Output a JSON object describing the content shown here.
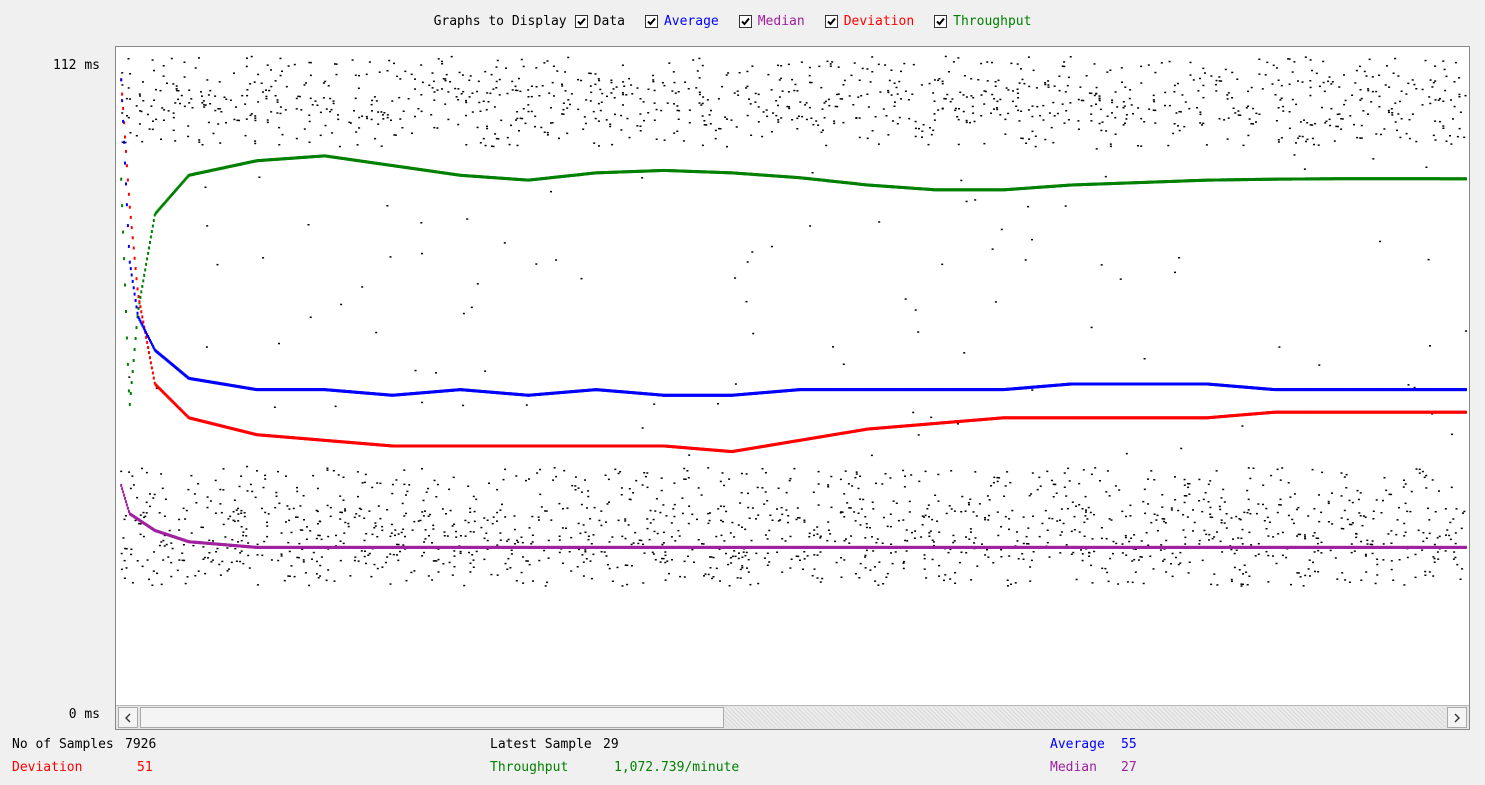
{
  "controls": {
    "title": "Graphs to Display",
    "checkboxes": [
      {
        "key": "data",
        "label": "Data",
        "checked": true,
        "color": "#000000"
      },
      {
        "key": "average",
        "label": "Average",
        "checked": true,
        "color": "#0000ff"
      },
      {
        "key": "median",
        "label": "Median",
        "checked": true,
        "color": "#a020a0"
      },
      {
        "key": "deviation",
        "label": "Deviation",
        "checked": true,
        "color": "#ff0000"
      },
      {
        "key": "throughput",
        "label": "Throughput",
        "checked": true,
        "color": "#008000"
      }
    ]
  },
  "axis": {
    "ymax_label": "112 ms",
    "ymin_label": "0 ms"
  },
  "stats": {
    "samples_label": "No of Samples",
    "samples_value": "7926",
    "latest_label": "Latest Sample",
    "latest_value": "29",
    "average_label": "Average",
    "average_value": "55",
    "deviation_label": "Deviation",
    "deviation_value": "51",
    "throughput_label": "Throughput",
    "throughput_value": "1,072.739/minute",
    "median_label": "Median",
    "median_value": "27"
  },
  "colors": {
    "data": "#000000",
    "average": "#0000ff",
    "median": "#a020a0",
    "deviation": "#ff0000",
    "throughput": "#008000"
  },
  "chart_data": {
    "type": "scatter",
    "ylim": [
      0,
      112
    ],
    "x": [
      1,
      50,
      100,
      200,
      400,
      800,
      1200,
      1600,
      2000,
      2400,
      2800,
      3200,
      3600,
      4000,
      4400,
      4800,
      5200,
      5600,
      6000,
      6400,
      6800,
      7200,
      7600,
      7926
    ],
    "series": [
      {
        "name": "Average",
        "values": [
          110,
          78,
          68,
          62,
          57,
          55,
          55,
          54,
          55,
          54,
          55,
          54,
          54,
          55,
          55,
          55,
          55,
          56,
          56,
          56,
          55,
          55,
          55,
          55
        ]
      },
      {
        "name": "Median",
        "values": [
          38,
          33,
          32,
          30,
          28,
          27,
          27,
          27,
          27,
          27,
          27,
          27,
          27,
          27,
          27,
          27,
          27,
          27,
          27,
          27,
          27,
          27,
          27,
          27
        ]
      },
      {
        "name": "Deviation",
        "values": [
          110,
          88,
          72,
          56,
          50,
          47,
          46,
          45,
          45,
          45,
          45,
          45,
          44,
          46,
          48,
          49,
          50,
          50,
          50,
          50,
          51,
          51,
          51,
          51
        ]
      }
    ],
    "throughput_per_minute": [
      1072,
      600,
      800,
      1000,
      1080,
      1110,
      1120,
      1100,
      1080,
      1070,
      1085,
      1090,
      1085,
      1075,
      1060,
      1050,
      1050,
      1060,
      1065,
      1070,
      1072,
      1073,
      1073,
      1072.739
    ],
    "data_bands_ms": [
      108,
      104,
      36,
      29,
      25
    ]
  }
}
